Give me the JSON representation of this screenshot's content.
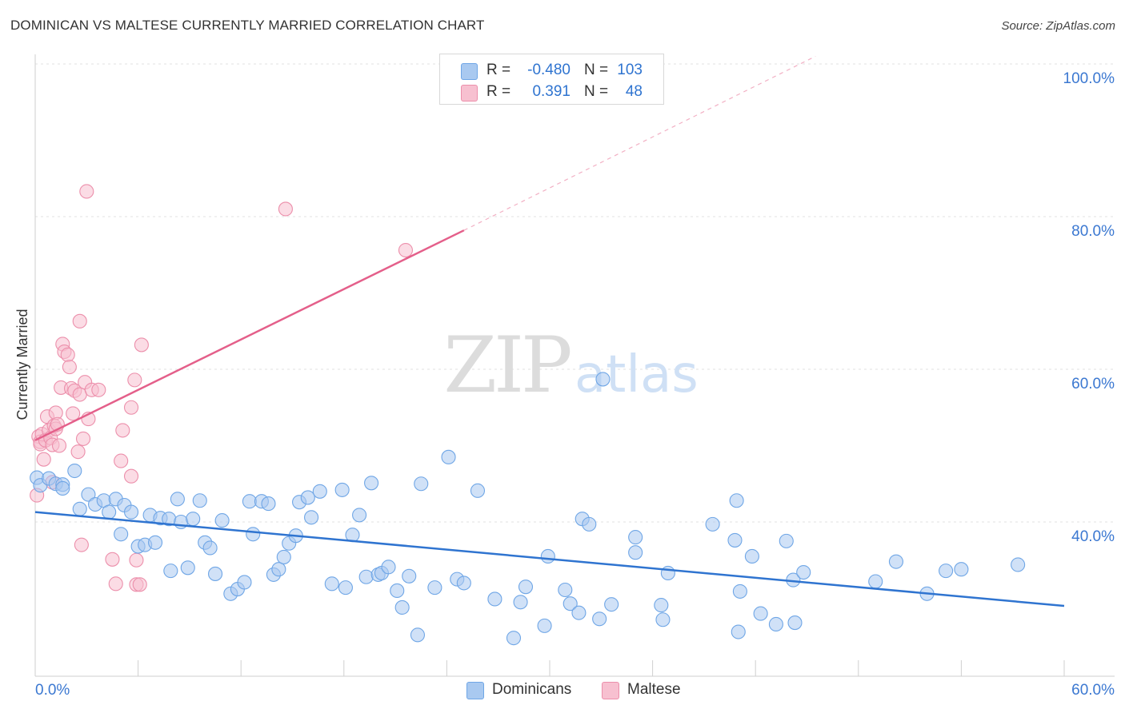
{
  "title": "DOMINICAN VS MALTESE CURRENTLY MARRIED CORRELATION CHART",
  "source": "Source: ZipAtlas.com",
  "colors": {
    "blue": "#6fa6e6",
    "blue_fill": "#a9c9f0",
    "blue_line": "#2f74d0",
    "pink": "#ec8fab",
    "pink_fill": "#f7c0d0",
    "pink_line": "#e45f8a",
    "axis_text": "#3b78d1"
  },
  "legend": {
    "r_label": "R =",
    "n_label": "N =",
    "rows": [
      {
        "series": "Dominicans",
        "r": "-0.480",
        "n": "103"
      },
      {
        "series": "Maltese",
        "r": "0.391",
        "n": "48"
      }
    ]
  },
  "chart_data": {
    "type": "scatter",
    "title": "DOMINICAN VS MALTESE CURRENTLY MARRIED CORRELATION CHART",
    "xlabel": "",
    "ylabel": "Currently Married",
    "xlim": [
      0,
      60
    ],
    "ylim": [
      20,
      102
    ],
    "x_tick_labels": [
      "0.0%",
      "60.0%"
    ],
    "y_ticks": [
      40,
      60,
      80,
      100
    ],
    "y_tick_labels": [
      "40.0%",
      "60.0%",
      "80.0%",
      "100.0%"
    ],
    "grid": true,
    "legend_position": "bottom",
    "watermark": "ZIPatlas",
    "series": [
      {
        "name": "Dominicans",
        "trend": {
          "x": [
            0,
            60
          ],
          "y": [
            41.3,
            29.0
          ]
        },
        "points": [
          [
            0.1,
            45.8
          ],
          [
            0.3,
            44.8
          ],
          [
            0.8,
            45.7
          ],
          [
            1.2,
            45.0
          ],
          [
            1.6,
            44.9
          ],
          [
            1.6,
            44.4
          ],
          [
            2.3,
            46.7
          ],
          [
            2.6,
            41.7
          ],
          [
            3.1,
            43.6
          ],
          [
            3.5,
            42.3
          ],
          [
            4.0,
            42.8
          ],
          [
            4.3,
            41.3
          ],
          [
            4.7,
            43.0
          ],
          [
            5.0,
            38.4
          ],
          [
            5.2,
            42.2
          ],
          [
            5.6,
            41.3
          ],
          [
            6.0,
            36.8
          ],
          [
            6.4,
            37.0
          ],
          [
            6.7,
            40.9
          ],
          [
            7.0,
            37.3
          ],
          [
            7.3,
            40.5
          ],
          [
            7.8,
            40.4
          ],
          [
            7.9,
            33.6
          ],
          [
            8.3,
            43.0
          ],
          [
            8.5,
            40.0
          ],
          [
            8.9,
            34.0
          ],
          [
            9.2,
            40.4
          ],
          [
            9.6,
            42.8
          ],
          [
            9.9,
            37.3
          ],
          [
            10.2,
            36.6
          ],
          [
            10.5,
            33.2
          ],
          [
            10.9,
            40.2
          ],
          [
            11.4,
            30.6
          ],
          [
            11.8,
            31.2
          ],
          [
            12.2,
            32.1
          ],
          [
            12.5,
            42.7
          ],
          [
            12.7,
            38.4
          ],
          [
            13.2,
            42.7
          ],
          [
            13.6,
            42.4
          ],
          [
            13.9,
            33.1
          ],
          [
            14.2,
            33.8
          ],
          [
            14.5,
            35.4
          ],
          [
            14.8,
            37.2
          ],
          [
            15.2,
            38.2
          ],
          [
            15.4,
            42.6
          ],
          [
            15.9,
            43.2
          ],
          [
            16.1,
            40.6
          ],
          [
            16.6,
            44.0
          ],
          [
            17.3,
            31.9
          ],
          [
            17.9,
            44.2
          ],
          [
            18.1,
            31.4
          ],
          [
            18.5,
            38.3
          ],
          [
            18.9,
            40.9
          ],
          [
            19.3,
            32.8
          ],
          [
            19.6,
            45.1
          ],
          [
            20.0,
            33.1
          ],
          [
            20.2,
            33.3
          ],
          [
            20.6,
            34.1
          ],
          [
            21.1,
            31.0
          ],
          [
            21.4,
            28.8
          ],
          [
            21.8,
            32.9
          ],
          [
            22.3,
            25.2
          ],
          [
            22.5,
            45.0
          ],
          [
            23.3,
            31.4
          ],
          [
            24.1,
            48.5
          ],
          [
            24.6,
            32.5
          ],
          [
            25.0,
            32.0
          ],
          [
            25.8,
            44.1
          ],
          [
            26.8,
            29.9
          ],
          [
            27.9,
            24.8
          ],
          [
            28.3,
            29.5
          ],
          [
            28.6,
            31.5
          ],
          [
            29.7,
            26.4
          ],
          [
            29.9,
            35.5
          ],
          [
            30.9,
            31.1
          ],
          [
            31.2,
            29.3
          ],
          [
            31.7,
            28.1
          ],
          [
            31.9,
            40.4
          ],
          [
            32.3,
            39.7
          ],
          [
            32.9,
            27.3
          ],
          [
            33.1,
            58.7
          ],
          [
            33.6,
            29.2
          ],
          [
            35.0,
            36.0
          ],
          [
            35.0,
            38.0
          ],
          [
            36.5,
            29.1
          ],
          [
            36.6,
            27.2
          ],
          [
            36.9,
            33.3
          ],
          [
            39.5,
            39.7
          ],
          [
            40.8,
            37.6
          ],
          [
            40.9,
            42.8
          ],
          [
            41.0,
            25.6
          ],
          [
            41.1,
            30.9
          ],
          [
            41.8,
            35.5
          ],
          [
            42.3,
            28.0
          ],
          [
            43.2,
            26.6
          ],
          [
            43.8,
            37.5
          ],
          [
            44.2,
            32.4
          ],
          [
            44.3,
            26.8
          ],
          [
            44.8,
            33.4
          ],
          [
            49.0,
            32.2
          ],
          [
            50.2,
            34.8
          ],
          [
            53.1,
            33.6
          ],
          [
            52.0,
            30.6
          ],
          [
            54.0,
            33.8
          ],
          [
            57.3,
            34.4
          ]
        ]
      },
      {
        "name": "Maltese",
        "trend": {
          "x": [
            0,
            25
          ],
          "y": [
            50.7,
            78.2
          ]
        },
        "trend_extension": {
          "x": [
            25,
            45.5
          ],
          "y": [
            78.2,
            101.0
          ]
        },
        "points": [
          [
            0.1,
            43.5
          ],
          [
            0.2,
            51.2
          ],
          [
            0.3,
            50.5
          ],
          [
            0.3,
            50.2
          ],
          [
            0.4,
            51.5
          ],
          [
            0.5,
            48.2
          ],
          [
            0.6,
            50.7
          ],
          [
            0.7,
            53.8
          ],
          [
            0.8,
            52.0
          ],
          [
            0.9,
            51.0
          ],
          [
            1.0,
            45.2
          ],
          [
            1.0,
            50.1
          ],
          [
            1.1,
            52.6
          ],
          [
            1.2,
            52.2
          ],
          [
            1.2,
            54.3
          ],
          [
            1.3,
            52.8
          ],
          [
            1.4,
            50.0
          ],
          [
            1.5,
            57.6
          ],
          [
            1.6,
            63.3
          ],
          [
            1.7,
            62.3
          ],
          [
            1.9,
            61.9
          ],
          [
            2.0,
            60.3
          ],
          [
            2.1,
            57.5
          ],
          [
            2.2,
            54.2
          ],
          [
            2.3,
            57.2
          ],
          [
            2.5,
            49.2
          ],
          [
            2.6,
            66.3
          ],
          [
            2.6,
            56.7
          ],
          [
            2.7,
            37.0
          ],
          [
            2.8,
            50.9
          ],
          [
            2.9,
            58.3
          ],
          [
            3.0,
            83.3
          ],
          [
            3.1,
            53.5
          ],
          [
            3.3,
            57.3
          ],
          [
            3.7,
            57.3
          ],
          [
            4.5,
            35.1
          ],
          [
            4.7,
            31.9
          ],
          [
            5.1,
            52.0
          ],
          [
            5.6,
            46.0
          ],
          [
            5.6,
            55.0
          ],
          [
            5.8,
            58.6
          ],
          [
            5.9,
            31.8
          ],
          [
            6.2,
            63.2
          ],
          [
            6.1,
            31.8
          ],
          [
            5.9,
            35.0
          ],
          [
            14.6,
            81.0
          ],
          [
            21.6,
            75.6
          ],
          [
            5.0,
            48.0
          ]
        ]
      }
    ]
  }
}
